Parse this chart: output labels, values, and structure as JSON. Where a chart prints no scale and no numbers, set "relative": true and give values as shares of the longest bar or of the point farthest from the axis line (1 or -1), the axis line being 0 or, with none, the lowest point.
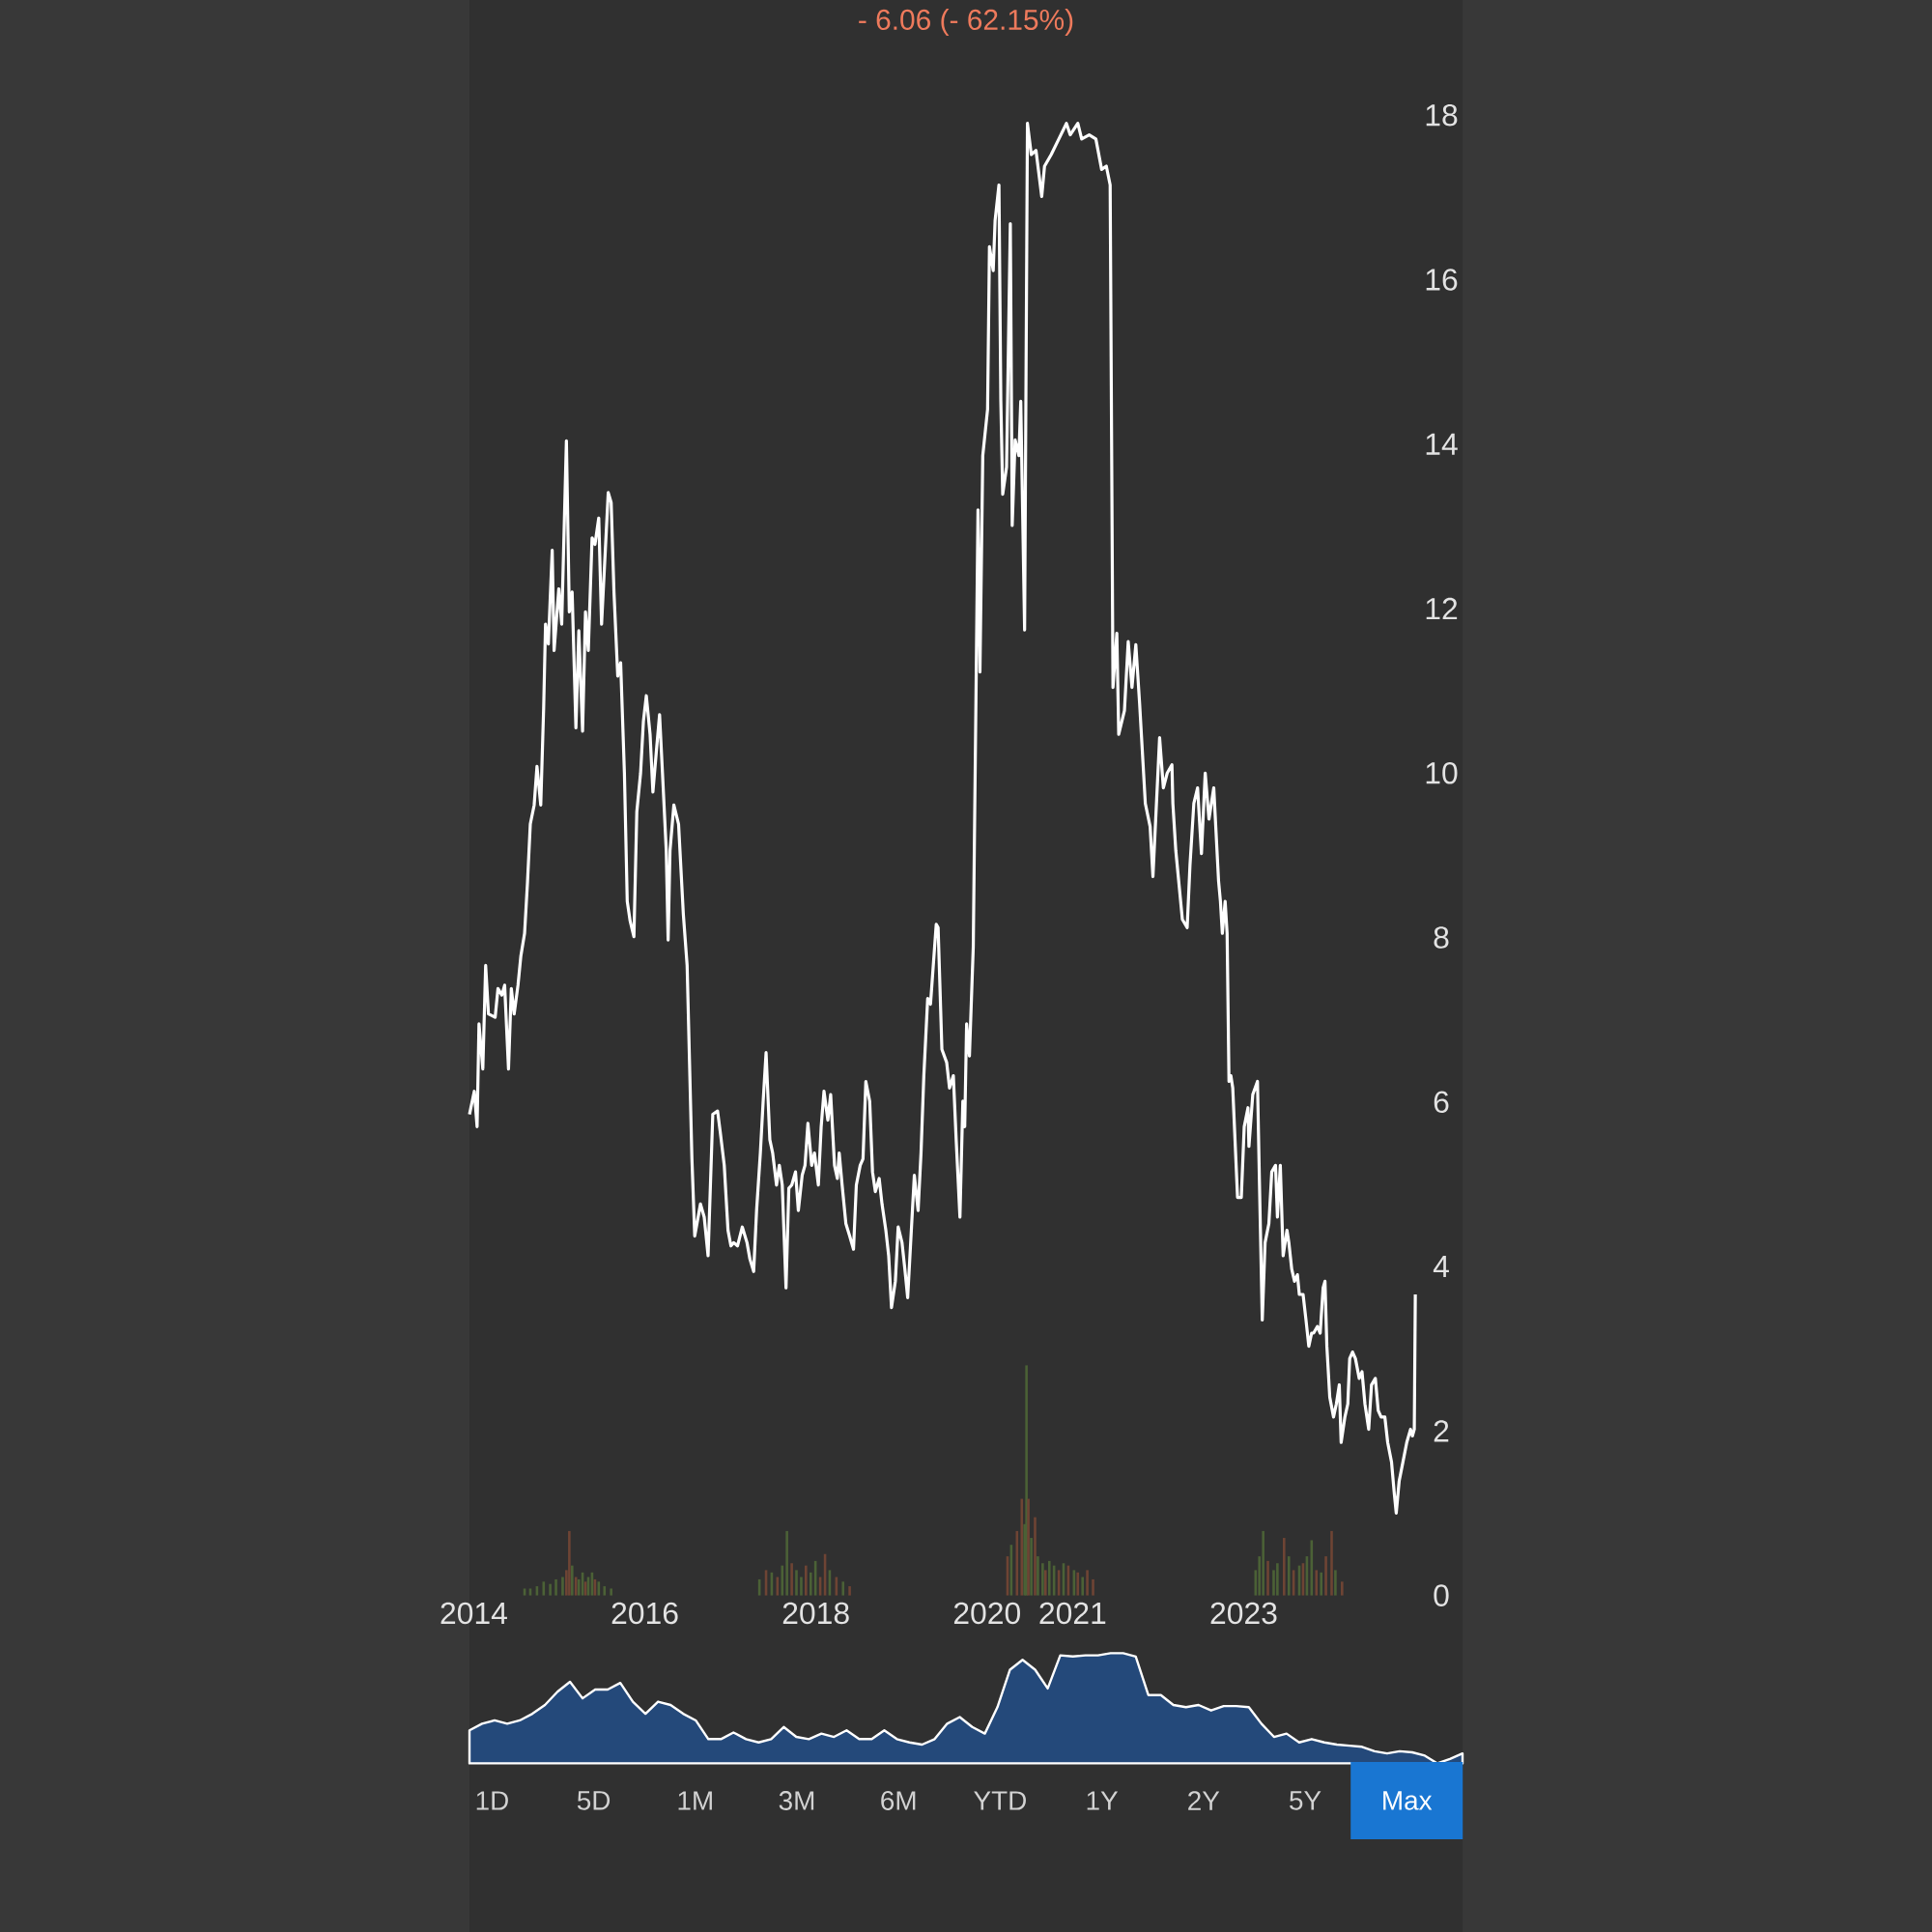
{
  "chart_data": [
    {
      "type": "line",
      "title": "- 6.06 (- 62.15%)",
      "color": "#ffffff",
      "xlim": [
        2013.95,
        2025.558
      ],
      "ylim": [
        0,
        19.4
      ],
      "xticks": [
        2014,
        2016,
        2018,
        2020,
        2021,
        2023
      ],
      "yticks": [
        0,
        2,
        4,
        6,
        8,
        10,
        12,
        14,
        16,
        18
      ],
      "x": [
        2013.95,
        2014.006,
        2014.039,
        2014.061,
        2014.106,
        2014.139,
        2014.172,
        2014.25,
        2014.283,
        2014.328,
        2014.361,
        2014.406,
        2014.439,
        2014.472,
        2014.517,
        2014.55,
        2014.594,
        2014.628,
        2014.661,
        2014.706,
        2014.739,
        2014.783,
        2014.817,
        2014.839,
        2014.872,
        2014.917,
        2014.939,
        2014.994,
        2015.028,
        2015.083,
        2015.117,
        2015.15,
        2015.194,
        2015.228,
        2015.272,
        2015.306,
        2015.339,
        2015.383,
        2015.417,
        2015.461,
        2015.494,
        2015.528,
        2015.572,
        2015.606,
        2015.639,
        2015.683,
        2015.717,
        2015.761,
        2015.794,
        2015.828,
        2015.872,
        2015.906,
        2015.95,
        2015.983,
        2016.017,
        2016.061,
        2016.094,
        2016.139,
        2016.172,
        2016.206,
        2016.25,
        2016.272,
        2016.294,
        2016.339,
        2016.394,
        2016.45,
        2016.494,
        2016.55,
        2016.583,
        2016.65,
        2016.694,
        2016.739,
        2016.794,
        2016.85,
        2016.883,
        2016.928,
        2016.972,
        2017.006,
        2017.039,
        2017.083,
        2017.139,
        2017.194,
        2017.228,
        2017.272,
        2017.306,
        2017.35,
        2017.383,
        2017.417,
        2017.461,
        2017.494,
        2017.539,
        2017.572,
        2017.606,
        2017.65,
        2017.683,
        2017.717,
        2017.761,
        2017.794,
        2017.839,
        2017.872,
        2017.906,
        2017.95,
        2017.983,
        2018.028,
        2018.061,
        2018.094,
        2018.139,
        2018.172,
        2018.217,
        2018.25,
        2018.272,
        2018.306,
        2018.35,
        2018.394,
        2018.439,
        2018.472,
        2018.517,
        2018.55,
        2018.583,
        2018.628,
        2018.661,
        2018.694,
        2018.739,
        2018.772,
        2018.817,
        2018.85,
        2018.883,
        2018.928,
        2018.961,
        2019.006,
        2019.039,
        2019.072,
        2019.117,
        2019.15,
        2019.194,
        2019.228,
        2019.261,
        2019.306,
        2019.339,
        2019.406,
        2019.428,
        2019.472,
        2019.528,
        2019.561,
        2019.606,
        2019.639,
        2019.683,
        2019.717,
        2019.739,
        2019.761,
        2019.794,
        2019.839,
        2019.894,
        2019.917,
        2019.95,
        2020.006,
        2020.028,
        2020.072,
        2020.094,
        2020.139,
        2020.161,
        2020.183,
        2020.228,
        2020.272,
        2020.294,
        2020.328,
        2020.372,
        2020.394,
        2020.439,
        2020.472,
        2020.517,
        2020.572,
        2020.639,
        2020.672,
        2020.75,
        2020.839,
        2020.928,
        2020.972,
        2021.061,
        2021.106,
        2021.194,
        2021.272,
        2021.339,
        2021.394,
        2021.439,
        2021.472,
        2021.517,
        2021.539,
        2021.606,
        2021.65,
        2021.694,
        2021.739,
        2021.783,
        2021.85,
        2021.906,
        2021.939,
        2022.017,
        2022.061,
        2022.106,
        2022.161,
        2022.172,
        2022.206,
        2022.283,
        2022.339,
        2022.372,
        2022.417,
        2022.461,
        2022.506,
        2022.55,
        2022.594,
        2022.65,
        2022.706,
        2022.728,
        2022.75,
        2022.783,
        2022.806,
        2022.828,
        2022.85,
        2022.872,
        2022.928,
        2022.972,
        2023.006,
        2023.05,
        2023.061,
        2023.106,
        2023.161,
        2023.183,
        2023.217,
        2023.25,
        2023.294,
        2023.328,
        2023.372,
        2023.394,
        2023.428,
        2023.461,
        2023.506,
        2023.528,
        2023.561,
        2023.594,
        2023.628,
        2023.65,
        2023.694,
        2023.728,
        2023.761,
        2023.794,
        2023.817,
        2023.861,
        2023.894,
        2023.928,
        2023.95,
        2023.972,
        2024.006,
        2024.05,
        2024.083,
        2024.117,
        2024.139,
        2024.183,
        2024.217,
        2024.239,
        2024.272,
        2024.306,
        2024.35,
        2024.383,
        2024.417,
        2024.461,
        2024.494,
        2024.539,
        2024.572,
        2024.606,
        2024.65,
        2024.683,
        2024.728,
        2024.761,
        2024.783,
        2024.817,
        2024.861,
        2024.906,
        2024.95,
        2024.972,
        2024.994,
        2025.006
      ],
      "values": [
        5.85,
        6.13,
        5.7,
        6.95,
        6.4,
        7.66,
        7.07,
        7.03,
        7.38,
        7.3,
        7.42,
        6.4,
        7.38,
        7.07,
        7.42,
        7.77,
        8.05,
        8.67,
        9.38,
        9.61,
        10.08,
        9.61,
        10.79,
        11.81,
        11.57,
        12.71,
        11.49,
        12.24,
        11.81,
        14.04,
        11.96,
        12.2,
        10.55,
        11.73,
        10.51,
        11.96,
        11.49,
        12.86,
        12.78,
        13.1,
        11.81,
        12.51,
        13.41,
        13.29,
        12.2,
        11.18,
        11.34,
        10.0,
        8.44,
        8.2,
        8.01,
        9.53,
        10.0,
        10.63,
        10.94,
        10.47,
        9.77,
        10.32,
        10.71,
        10.0,
        9.06,
        7.97,
        9.06,
        9.61,
        9.38,
        8.28,
        7.66,
        5.31,
        4.37,
        4.76,
        4.6,
        4.13,
        5.85,
        5.89,
        5.62,
        5.23,
        4.44,
        4.25,
        4.29,
        4.25,
        4.48,
        4.29,
        4.09,
        3.94,
        4.68,
        5.38,
        6.01,
        6.6,
        5.54,
        5.38,
        4.99,
        5.23,
        4.99,
        3.74,
        4.95,
        4.99,
        5.15,
        4.68,
        5.11,
        5.23,
        5.74,
        5.23,
        5.38,
        4.99,
        5.7,
        6.13,
        5.78,
        6.09,
        5.23,
        5.07,
        5.38,
        4.99,
        4.52,
        4.37,
        4.21,
        4.99,
        5.23,
        5.31,
        6.25,
        6.01,
        5.15,
        4.91,
        5.07,
        4.76,
        4.44,
        4.13,
        3.5,
        3.82,
        4.48,
        4.29,
        3.97,
        3.62,
        4.48,
        5.11,
        4.68,
        5.38,
        6.32,
        7.26,
        7.19,
        8.16,
        8.12,
        6.64,
        6.48,
        6.17,
        6.32,
        5.54,
        4.6,
        6.01,
        5.7,
        6.95,
        6.56,
        7.89,
        13.2,
        11.23,
        13.86,
        14.42,
        16.4,
        16.11,
        16.72,
        17.15,
        14.52,
        13.39,
        13.72,
        16.68,
        13.01,
        14.05,
        13.86,
        14.52,
        11.74,
        17.9,
        17.52,
        17.57,
        17.01,
        17.38,
        17.52,
        17.71,
        17.9,
        17.76,
        17.9,
        17.71,
        17.76,
        17.71,
        17.34,
        17.38,
        17.15,
        11.04,
        11.7,
        10.47,
        10.76,
        11.6,
        11.04,
        11.56,
        10.85,
        9.63,
        9.35,
        8.74,
        10.43,
        9.82,
        10.0,
        10.1,
        9.63,
        9.06,
        8.22,
        8.12,
        8.88,
        9.63,
        9.82,
        9.02,
        10.0,
        9.44,
        9.82,
        8.69,
        8.44,
        8.05,
        8.44,
        8.05,
        6.25,
        6.32,
        6.17,
        4.84,
        4.84,
        5.7,
        5.93,
        5.46,
        6.09,
        6.25,
        5.07,
        3.35,
        4.29,
        4.52,
        5.15,
        5.23,
        4.6,
        5.23,
        4.13,
        4.44,
        4.29,
        3.97,
        3.82,
        3.9,
        3.66,
        3.66,
        3.35,
        3.03,
        3.19,
        3.19,
        3.27,
        3.19,
        3.74,
        3.82,
        3.03,
        2.41,
        2.17,
        2.33,
        2.56,
        1.86,
        2.17,
        2.33,
        2.88,
        2.96,
        2.88,
        2.64,
        2.72,
        2.33,
        2.02,
        2.56,
        2.64,
        2.25,
        2.17,
        2.17,
        1.86,
        1.62,
        1.23,
        1.0,
        1.39,
        1.62,
        1.86,
        2.02,
        1.94,
        2.02,
        3.66
      ]
    },
    {
      "type": "bar",
      "relative": true,
      "tick_labels": false,
      "xlim": [
        2013.95,
        2025.558
      ],
      "x": [
        2014.594,
        2014.661,
        2014.739,
        2014.817,
        2014.894,
        2014.961,
        2015.039,
        2015.083,
        2015.117,
        2015.15,
        2015.194,
        2015.228,
        2015.272,
        2015.306,
        2015.339,
        2015.383,
        2015.417,
        2015.461,
        2015.528,
        2015.606,
        2017.339,
        2017.417,
        2017.483,
        2017.55,
        2017.606,
        2017.661,
        2017.717,
        2017.772,
        2017.828,
        2017.883,
        2017.939,
        2017.994,
        2018.05,
        2018.106,
        2018.161,
        2018.239,
        2018.317,
        2018.394,
        2020.239,
        2020.283,
        2020.35,
        2020.406,
        2020.439,
        2020.461,
        2020.483,
        2020.517,
        2020.561,
        2020.594,
        2020.65,
        2020.683,
        2020.728,
        2020.783,
        2020.839,
        2020.894,
        2020.95,
        2021.017,
        2021.061,
        2021.117,
        2021.172,
        2021.239,
        2023.139,
        2023.183,
        2023.228,
        2023.283,
        2023.35,
        2023.394,
        2023.472,
        2023.528,
        2023.583,
        2023.65,
        2023.694,
        2023.739,
        2023.794,
        2023.85,
        2023.906,
        2023.961,
        2024.028,
        2024.072,
        2024.15
      ],
      "values": [
        0.03,
        0.03,
        0.04,
        0.06,
        0.05,
        0.07,
        0.08,
        0.11,
        0.28,
        0.13,
        0.08,
        0.07,
        0.1,
        0.06,
        0.08,
        0.1,
        0.07,
        0.06,
        0.04,
        0.03,
        0.07,
        0.11,
        0.1,
        0.08,
        0.13,
        0.28,
        0.14,
        0.11,
        0.08,
        0.13,
        0.1,
        0.15,
        0.08,
        0.18,
        0.11,
        0.08,
        0.06,
        0.04,
        0.17,
        0.22,
        0.28,
        0.42,
        0.31,
        1,
        0.42,
        0.25,
        0.34,
        0.17,
        0.14,
        0.11,
        0.15,
        0.13,
        0.11,
        0.14,
        0.13,
        0.11,
        0.1,
        0.08,
        0.11,
        0.07,
        0.11,
        0.17,
        0.28,
        0.15,
        0.11,
        0.14,
        0.25,
        0.17,
        0.11,
        0.13,
        0.14,
        0.17,
        0.24,
        0.11,
        0.1,
        0.17,
        0.28,
        0.11,
        0.06
      ],
      "colors": [
        "#4b6136",
        "#4b6136",
        "#4b6136",
        "#4b6136",
        "#4b6136",
        "#4b6136",
        "#4b6136",
        "#6e4434",
        "#6e4434",
        "#4b6136",
        "#6e4434",
        "#4b6136",
        "#4b6136",
        "#6e4434",
        "#4b6136",
        "#4b6136",
        "#6e4434",
        "#4b6136",
        "#4b6136",
        "#4b6136",
        "#4b6136",
        "#6e4434",
        "#4b6136",
        "#6e4434",
        "#4b6136",
        "#4b6136",
        "#6e4434",
        "#4b6136",
        "#4b6136",
        "#6e4434",
        "#4b6136",
        "#4b6136",
        "#6e4434",
        "#6e4434",
        "#4b6136",
        "#6e4434",
        "#4b6136",
        "#6e4434",
        "#6e4434",
        "#4b6136",
        "#6e4434",
        "#6e4434",
        "#4b6136",
        "#4b6136",
        "#6e4434",
        "#4b6136",
        "#6e4434",
        "#4b6136",
        "#4b6136",
        "#6e4434",
        "#4b6136",
        "#4b6136",
        "#6e4434",
        "#4b6136",
        "#6e4434",
        "#4b6136",
        "#6e4434",
        "#4b6136",
        "#6e4434",
        "#6e4434",
        "#4b6136",
        "#4b6136",
        "#4b6136",
        "#6e4434",
        "#4b6136",
        "#4b6136",
        "#6e4434",
        "#4b6136",
        "#6e4434",
        "#4b6136",
        "#6e4434",
        "#4b6136",
        "#4b6136",
        "#6e4434",
        "#4b6136",
        "#6e4434",
        "#6e4434",
        "#4b6136",
        "#6e4434"
      ]
    },
    {
      "type": "area",
      "relative": true,
      "tick_labels": false,
      "color": "#24497a",
      "xlim": [
        2013.95,
        2025.558
      ],
      "x": [
        2013.95,
        2014.097,
        2014.244,
        2014.391,
        2014.538,
        2014.685,
        2014.832,
        2014.979,
        2015.125,
        2015.272,
        2015.419,
        2015.566,
        2015.713,
        2015.86,
        2016.007,
        2016.154,
        2016.301,
        2016.448,
        2016.595,
        2016.742,
        2016.889,
        2017.036,
        2017.183,
        2017.33,
        2017.476,
        2017.623,
        2017.77,
        2017.917,
        2018.064,
        2018.211,
        2018.358,
        2018.505,
        2018.652,
        2018.799,
        2018.946,
        2019.093,
        2019.24,
        2019.387,
        2019.534,
        2019.681,
        2019.827,
        2019.974,
        2020.121,
        2020.268,
        2020.415,
        2020.562,
        2020.709,
        2020.856,
        2021.003,
        2021.15,
        2021.297,
        2021.444,
        2021.591,
        2021.738,
        2021.885,
        2022.032,
        2022.178,
        2022.325,
        2022.472,
        2022.619,
        2022.766,
        2022.913,
        2023.06,
        2023.207,
        2023.354,
        2023.501,
        2023.648,
        2023.795,
        2023.942,
        2024.089,
        2024.236,
        2024.383,
        2024.529,
        2024.676,
        2024.823,
        2024.97,
        2025.117,
        2025.264,
        2025.411,
        2025.558
      ],
      "values": [
        0.3,
        0.36,
        0.39,
        0.36,
        0.39,
        0.45,
        0.53,
        0.65,
        0.74,
        0.59,
        0.67,
        0.67,
        0.73,
        0.56,
        0.45,
        0.56,
        0.53,
        0.45,
        0.39,
        0.22,
        0.22,
        0.28,
        0.22,
        0.19,
        0.22,
        0.33,
        0.24,
        0.22,
        0.27,
        0.24,
        0.3,
        0.22,
        0.22,
        0.3,
        0.22,
        0.19,
        0.17,
        0.22,
        0.36,
        0.42,
        0.33,
        0.27,
        0.51,
        0.85,
        0.94,
        0.85,
        0.68,
        0.98,
        0.97,
        0.98,
        0.98,
        1,
        1,
        0.97,
        0.62,
        0.62,
        0.53,
        0.51,
        0.53,
        0.48,
        0.52,
        0.52,
        0.51,
        0.36,
        0.24,
        0.27,
        0.19,
        0.22,
        0.19,
        0.17,
        0.16,
        0.15,
        0.11,
        0.09,
        0.11,
        0.1,
        0.07,
        0,
        0.04,
        0.09
      ]
    },
    {
      "type": "other",
      "categories": [
        "1D",
        "5D",
        "1M",
        "3M",
        "6M",
        "YTD",
        "1Y",
        "2Y",
        "5Y",
        "Max"
      ],
      "colors": [
        null,
        null,
        null,
        null,
        null,
        null,
        null,
        null,
        null,
        "#1976d2"
      ]
    }
  ]
}
